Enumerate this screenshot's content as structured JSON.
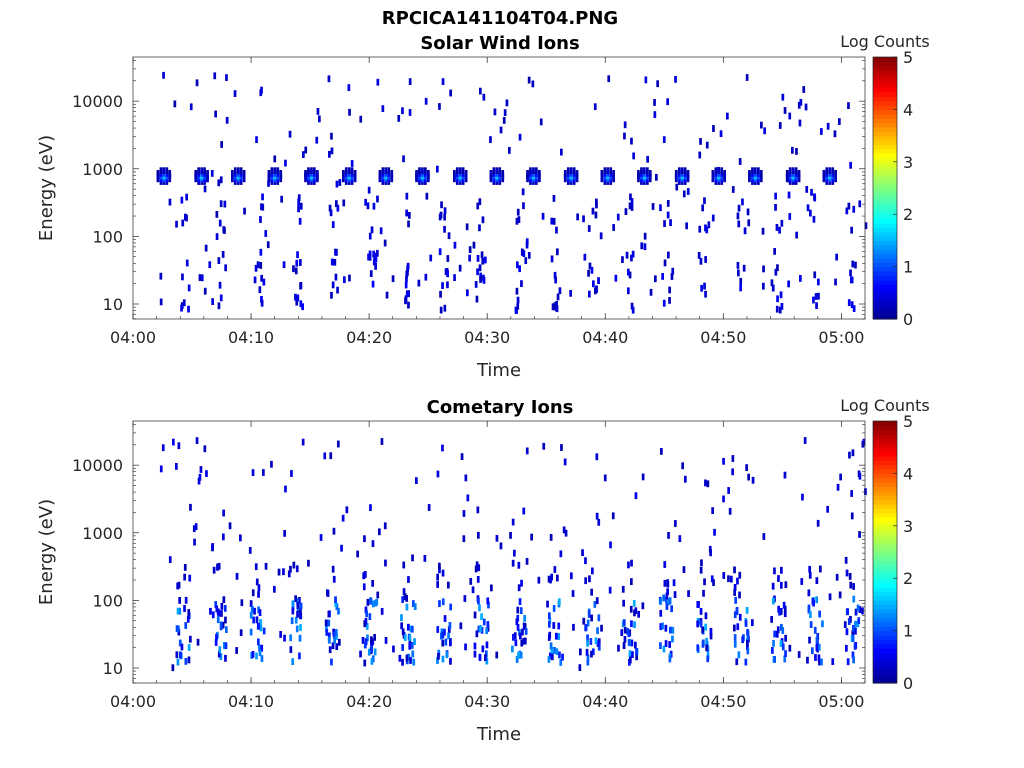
{
  "figure_title": "RPCICA141104T04.PNG",
  "colorbar_tick_labels": [
    "5",
    "4",
    "3",
    "2",
    "1",
    "0"
  ],
  "colormap": [
    "#00008f",
    "#0000ff",
    "#0080ff",
    "#00ffff",
    "#80ff80",
    "#ffff00",
    "#ff8000",
    "#ff0000",
    "#800000"
  ],
  "chart_data": [
    {
      "type": "heatmap",
      "title": "Solar Wind Ions",
      "xlabel": "Time",
      "ylabel": "Energy (eV)",
      "colorbar_label": "Log Counts",
      "yscale": "log",
      "xlim": [
        "04:00",
        "05:02"
      ],
      "ylim": [
        6,
        45000
      ],
      "clim": [
        0,
        5
      ],
      "x_tick_labels": [
        "04:00",
        "04:10",
        "04:20",
        "04:30",
        "04:40",
        "04:50",
        "05:00"
      ],
      "y_tick_labels": [
        "10",
        "100",
        "1000",
        "10000"
      ],
      "pattern": {
        "beam_energy_ev": 780,
        "beam_peak_log_counts": 1.6,
        "beam_times_min": [
          2.5,
          5.7,
          8.8,
          11.9,
          15.0,
          18.2,
          21.3,
          24.4,
          27.6,
          30.7,
          33.8,
          37.0,
          40.1,
          43.2,
          46.4,
          49.5,
          52.6,
          55.8,
          58.9
        ],
        "low_energy_streak_times_min": [
          4.0,
          7.0,
          10.2,
          13.5,
          16.6,
          19.8,
          22.8,
          25.9,
          29.0,
          32.2,
          35.3,
          38.4,
          41.6,
          44.7,
          47.8,
          51.0,
          54.1,
          57.2,
          60.3
        ],
        "low_energy_range_ev": [
          8,
          60
        ],
        "sparse_background_log_counts": 0.3
      }
    },
    {
      "type": "heatmap",
      "title": "Cometary Ions",
      "xlabel": "Time",
      "ylabel": "Energy (eV)",
      "colorbar_label": "Log Counts",
      "yscale": "log",
      "xlim": [
        "04:00",
        "05:02"
      ],
      "ylim": [
        6,
        45000
      ],
      "clim": [
        0,
        5
      ],
      "x_tick_labels": [
        "04:00",
        "04:10",
        "04:20",
        "04:30",
        "04:40",
        "04:50",
        "05:00"
      ],
      "y_tick_labels": [
        "10",
        "100",
        "1000",
        "10000"
      ],
      "pattern": {
        "beam_energy_ev": 780,
        "beam_peak_log_counts": 0.4,
        "cometary_burst_times_min": [
          3.6,
          6.6,
          9.8,
          13.0,
          16.2,
          19.4,
          22.6,
          25.6,
          28.8,
          32.0,
          35.1,
          38.2,
          41.4,
          44.5,
          47.7,
          50.8,
          54.0,
          57.1,
          60.2
        ],
        "cometary_energy_range_ev": [
          12,
          110
        ],
        "cometary_peak_log_counts": 1.5
      }
    }
  ]
}
